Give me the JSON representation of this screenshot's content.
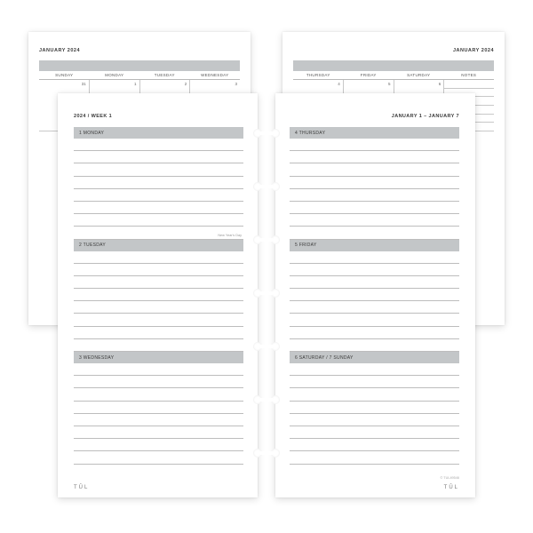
{
  "colors": {
    "page_bg": "#ffffff",
    "band_grey": "#c3c6c8",
    "rule_grey": "#bdbdbd",
    "text_dark": "#3a3a3a",
    "text_mid": "#666666"
  },
  "monthly": {
    "left": {
      "title": "JANUARY 2024",
      "day_headers": [
        "SUNDAY",
        "MONDAY",
        "TUESDAY",
        "WEDNESDAY"
      ],
      "row1_nums": [
        "31",
        "1",
        "2",
        "3"
      ],
      "holiday_note": "New Year's Day"
    },
    "right": {
      "title": "JANUARY 2024",
      "day_headers": [
        "THURSDAY",
        "FRIDAY",
        "SATURDAY",
        "NOTES"
      ],
      "row1_nums": [
        "4",
        "5",
        "6",
        ""
      ]
    }
  },
  "weekly": {
    "left": {
      "header": "2024 / WEEK 1",
      "days": [
        {
          "label": "1   MONDAY",
          "lines": 8,
          "right_note": "New Year's Day"
        },
        {
          "label": "2   TUESDAY",
          "lines": 8
        },
        {
          "label": "3   WEDNESDAY",
          "lines": 8
        }
      ],
      "brand": "TŪL"
    },
    "right": {
      "header": "JANUARY 1 – JANUARY 7",
      "days": [
        {
          "label": "4   THURSDAY",
          "lines": 8
        },
        {
          "label": "5   FRIDAY",
          "lines": 8
        },
        {
          "label": "6   SATURDAY  /  7  SUNDAY",
          "lines": 8
        }
      ],
      "brand": "TŪL",
      "corner": "© TUL49546"
    }
  },
  "punch_positions_back": [
    70,
    130,
    190,
    250
  ],
  "punch_positions_front": [
    40,
    100,
    160,
    220,
    280,
    340,
    400
  ]
}
